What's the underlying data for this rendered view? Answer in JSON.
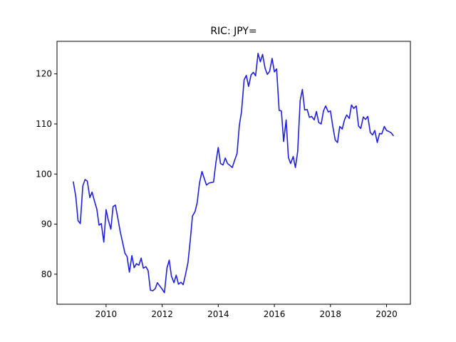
{
  "chart_data": {
    "type": "line",
    "title": "RIC: JPY=",
    "xlabel": "",
    "ylabel": "",
    "xlim": [
      2008.25,
      2020.85
    ],
    "ylim": [
      74.0,
      126.5
    ],
    "x_ticks": [
      2010,
      2012,
      2014,
      2016,
      2018,
      2020
    ],
    "x_tick_labels": [
      "2010",
      "2012",
      "2014",
      "2016",
      "2018",
      "2020"
    ],
    "y_ticks": [
      80,
      90,
      100,
      110,
      120
    ],
    "y_tick_labels": [
      "80",
      "90",
      "100",
      "110",
      "120"
    ],
    "grid": false,
    "series": [
      {
        "color": "#1f1fdd",
        "x": [
          2008.83,
          2008.92,
          2009.0,
          2009.08,
          2009.17,
          2009.25,
          2009.33,
          2009.42,
          2009.5,
          2009.58,
          2009.67,
          2009.75,
          2009.83,
          2009.92,
          2010.0,
          2010.08,
          2010.17,
          2010.25,
          2010.33,
          2010.42,
          2010.5,
          2010.58,
          2010.67,
          2010.75,
          2010.83,
          2010.92,
          2011.0,
          2011.08,
          2011.17,
          2011.25,
          2011.33,
          2011.42,
          2011.5,
          2011.58,
          2011.67,
          2011.75,
          2011.83,
          2011.92,
          2012.0,
          2012.08,
          2012.17,
          2012.25,
          2012.33,
          2012.42,
          2012.5,
          2012.58,
          2012.67,
          2012.75,
          2012.83,
          2012.92,
          2013.0,
          2013.08,
          2013.17,
          2013.25,
          2013.33,
          2013.42,
          2013.5,
          2013.58,
          2013.67,
          2013.75,
          2013.83,
          2013.92,
          2014.0,
          2014.08,
          2014.17,
          2014.25,
          2014.33,
          2014.42,
          2014.5,
          2014.58,
          2014.67,
          2014.75,
          2014.83,
          2014.92,
          2015.0,
          2015.08,
          2015.17,
          2015.25,
          2015.33,
          2015.42,
          2015.5,
          2015.58,
          2015.67,
          2015.75,
          2015.83,
          2015.92,
          2016.0,
          2016.08,
          2016.17,
          2016.25,
          2016.33,
          2016.42,
          2016.5,
          2016.58,
          2016.67,
          2016.75,
          2016.83,
          2016.92,
          2017.0,
          2017.08,
          2017.17,
          2017.25,
          2017.33,
          2017.42,
          2017.5,
          2017.58,
          2017.67,
          2017.75,
          2017.83,
          2017.92,
          2018.0,
          2018.08,
          2018.17,
          2018.25,
          2018.33,
          2018.42,
          2018.5,
          2018.58,
          2018.67,
          2018.75,
          2018.83,
          2018.92,
          2019.0,
          2019.08,
          2019.17,
          2019.25,
          2019.33,
          2019.42,
          2019.5,
          2019.58,
          2019.67,
          2019.75,
          2019.83,
          2019.92,
          2020.0,
          2020.08,
          2020.17,
          2020.25
        ],
        "values": [
          98.5,
          95.5,
          90.7,
          90.1,
          97.6,
          98.9,
          98.6,
          95.3,
          96.4,
          94.7,
          93.0,
          89.8,
          90.1,
          86.4,
          92.9,
          90.8,
          89.0,
          93.5,
          93.8,
          91.2,
          88.6,
          86.6,
          84.2,
          83.5,
          80.4,
          83.7,
          81.3,
          82.1,
          81.8,
          83.2,
          81.2,
          81.5,
          80.7,
          76.8,
          76.7,
          77.1,
          78.3,
          77.6,
          77.0,
          76.3,
          81.2,
          82.8,
          79.6,
          78.3,
          79.8,
          78.0,
          78.4,
          77.9,
          79.9,
          82.3,
          86.7,
          91.6,
          92.5,
          94.3,
          98.2,
          100.5,
          99.1,
          97.8,
          98.2,
          98.3,
          98.4,
          102.5,
          105.3,
          102.1,
          101.8,
          103.2,
          102.1,
          101.7,
          101.3,
          102.7,
          104.1,
          109.7,
          112.5,
          118.8,
          119.7,
          117.5,
          119.8,
          120.3,
          119.6,
          124.1,
          122.4,
          123.9,
          121.1,
          119.9,
          120.5,
          123.1,
          120.4,
          121.0,
          112.7,
          112.6,
          106.5,
          110.8,
          103.3,
          102.1,
          103.5,
          101.3,
          104.5,
          114.7,
          116.9,
          112.8,
          112.9,
          111.3,
          111.5,
          110.8,
          112.5,
          110.3,
          110.0,
          112.6,
          113.6,
          112.4,
          112.6,
          109.6,
          106.8,
          106.3,
          109.5,
          109.0,
          110.8,
          111.8,
          111.1,
          113.8,
          113.1,
          113.6,
          109.6,
          109.1,
          111.4,
          110.9,
          111.5,
          108.3,
          107.8,
          108.7,
          106.3,
          108.1,
          108.0,
          109.5,
          108.7,
          108.5,
          108.2,
          107.6
        ]
      }
    ]
  }
}
